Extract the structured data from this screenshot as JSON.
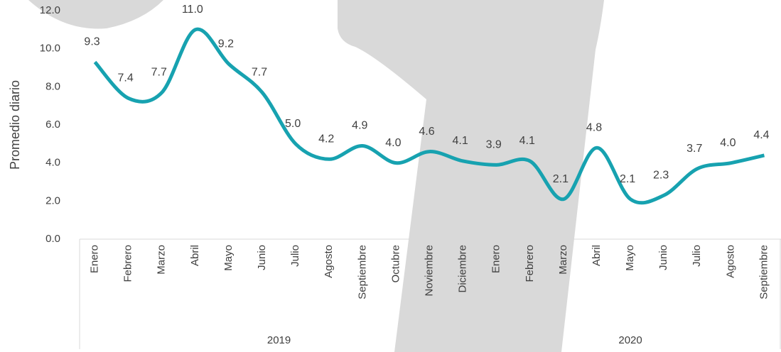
{
  "chart_data": {
    "type": "line",
    "y_label": "Promedio diario",
    "groups": [
      {
        "name": "2019",
        "categories": [
          "Enero",
          "Febrero",
          "Marzo",
          "Abril",
          "Mayo",
          "Junio",
          "Julio",
          "Agosto",
          "Septiembre",
          "Octubre",
          "Noviembre",
          "Diciembre"
        ]
      },
      {
        "name": "2020",
        "categories": [
          "Enero",
          "Febrero",
          "Marzo",
          "Abril",
          "Mayo",
          "Junio",
          "Julio",
          "Agosto",
          "Septiembre"
        ]
      }
    ],
    "values": [
      9.3,
      7.4,
      7.7,
      11.0,
      9.2,
      7.7,
      5.0,
      4.2,
      4.9,
      4.0,
      4.6,
      4.1,
      3.9,
      4.1,
      2.1,
      4.8,
      2.1,
      2.3,
      3.7,
      4.0,
      4.4
    ],
    "value_labels": [
      "9.3",
      "7.4",
      "7.7",
      "11.0",
      "9.2",
      "7.7",
      "5.0",
      "4.2",
      "4.9",
      "4.0",
      "4.6",
      "4.1",
      "3.9",
      "4.1",
      "2.1",
      "4.8",
      "2.1",
      "2.3",
      "3.7",
      "4.0",
      "4.4"
    ],
    "color": "#17a2b0",
    "smooth": true,
    "ylim": [
      0,
      12
    ],
    "yticks": [
      {
        "value": 0,
        "label": "0.0"
      },
      {
        "value": 2,
        "label": "2.0"
      },
      {
        "value": 4,
        "label": "4.0"
      },
      {
        "value": 6,
        "label": "6.0"
      },
      {
        "value": 8,
        "label": "8.0"
      },
      {
        "value": 10,
        "label": "10.0"
      },
      {
        "value": 12,
        "label": "12.0"
      }
    ]
  }
}
